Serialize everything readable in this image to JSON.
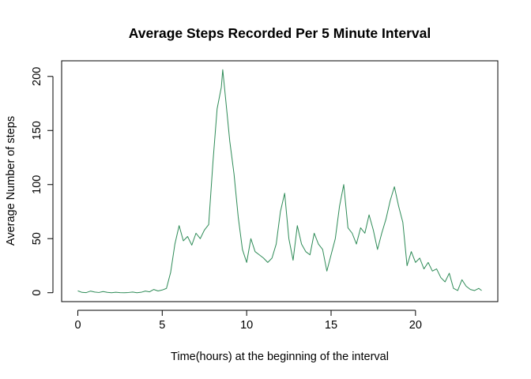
{
  "chart_data": {
    "type": "line",
    "title": "Average Steps Recorded Per 5 Minute Interval",
    "xlabel": "Time(hours) at the beginning of the interval",
    "ylabel": "Average Number of steps",
    "xlim": [
      -0.9583,
      24.875
    ],
    "ylim": [
      -8.24,
      214.44
    ],
    "xticks": [
      0,
      5,
      10,
      15,
      20
    ],
    "yticks": [
      0,
      50,
      100,
      150,
      200
    ],
    "grid": false,
    "legend": "none",
    "series": [
      {
        "color": "#2e8b57",
        "x": [
          0,
          0.25,
          0.5,
          0.75,
          1.0,
          1.25,
          1.5,
          1.75,
          2.0,
          2.25,
          2.5,
          2.75,
          3.0,
          3.25,
          3.5,
          3.75,
          4.0,
          4.25,
          4.5,
          4.75,
          5.0,
          5.25,
          5.5,
          5.75,
          6.0,
          6.25,
          6.5,
          6.75,
          7.0,
          7.25,
          7.5,
          7.75,
          8.0,
          8.25,
          8.5,
          8.583,
          8.75,
          9.0,
          9.25,
          9.5,
          9.75,
          10.0,
          10.25,
          10.5,
          10.75,
          11.0,
          11.25,
          11.5,
          11.75,
          12.0,
          12.25,
          12.5,
          12.75,
          13.0,
          13.25,
          13.5,
          13.75,
          14.0,
          14.25,
          14.5,
          14.75,
          15.0,
          15.25,
          15.5,
          15.75,
          16.0,
          16.25,
          16.5,
          16.75,
          17.0,
          17.25,
          17.5,
          17.75,
          18.0,
          18.25,
          18.5,
          18.75,
          19.0,
          19.25,
          19.5,
          19.75,
          20.0,
          20.25,
          20.5,
          20.75,
          21.0,
          21.25,
          21.5,
          21.75,
          22.0,
          22.25,
          22.5,
          22.75,
          23.0,
          23.25,
          23.5,
          23.75,
          23.917
        ],
        "values": [
          1.7,
          0.3,
          0.1,
          1.5,
          0.6,
          0.2,
          1.1,
          0.3,
          0.0,
          0.4,
          0.1,
          0.0,
          0.2,
          0.6,
          0.0,
          0.4,
          1.5,
          0.8,
          3.0,
          1.6,
          2.5,
          4.0,
          19.0,
          45.0,
          62.0,
          48.0,
          52.0,
          44.0,
          55.0,
          50.0,
          58.0,
          63.0,
          120.0,
          170.0,
          190.0,
          206.2,
          180.0,
          140.0,
          110.0,
          70.0,
          40.0,
          28.0,
          50.0,
          38.0,
          35.0,
          32.0,
          28.0,
          32.0,
          45.0,
          75.0,
          92.0,
          50.0,
          30.0,
          62.0,
          45.0,
          38.0,
          35.0,
          55.0,
          45.0,
          40.0,
          20.0,
          35.0,
          50.0,
          80.0,
          100.0,
          60.0,
          55.0,
          45.0,
          60.0,
          55.0,
          72.0,
          58.0,
          40.0,
          55.0,
          68.0,
          85.0,
          98.0,
          80.0,
          65.0,
          25.0,
          38.0,
          28.0,
          32.0,
          22.0,
          28.0,
          20.0,
          22.0,
          14.0,
          10.0,
          18.0,
          4.0,
          2.0,
          12.0,
          6.0,
          3.0,
          2.0,
          4.0,
          2.0
        ]
      }
    ]
  }
}
